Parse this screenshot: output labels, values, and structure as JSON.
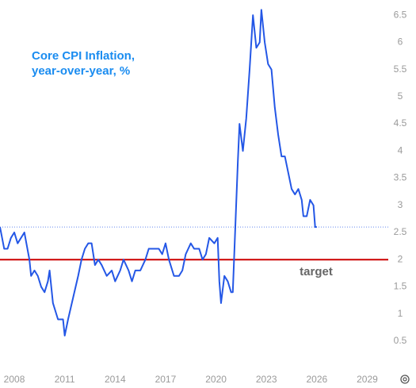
{
  "chart_data": {
    "type": "line",
    "title": "Core CPI Inflation, year-over-year, %",
    "x": [
      2007.15,
      2007.4,
      2007.6,
      2007.8,
      2008.0,
      2008.2,
      2008.4,
      2008.6,
      2008.9,
      2009.0,
      2009.2,
      2009.4,
      2009.6,
      2009.8,
      2010.0,
      2010.1,
      2010.3,
      2010.6,
      2010.9,
      2011.0,
      2011.2,
      2011.5,
      2011.8,
      2012.0,
      2012.2,
      2012.4,
      2012.6,
      2012.8,
      2013.0,
      2013.2,
      2013.5,
      2013.8,
      2014.0,
      2014.3,
      2014.5,
      2014.8,
      2015.0,
      2015.2,
      2015.5,
      2015.8,
      2016.0,
      2016.3,
      2016.6,
      2016.8,
      2017.0,
      2017.2,
      2017.5,
      2017.8,
      2018.0,
      2018.2,
      2018.5,
      2018.7,
      2019.0,
      2019.2,
      2019.4,
      2019.6,
      2019.9,
      2020.1,
      2020.2,
      2020.3,
      2020.5,
      2020.7,
      2020.9,
      2021.0,
      2021.2,
      2021.3,
      2021.4,
      2021.6,
      2021.8,
      2022.0,
      2022.2,
      2022.4,
      2022.6,
      2022.7,
      2022.9,
      2023.1,
      2023.3,
      2023.5,
      2023.7,
      2023.9,
      2024.1,
      2024.3,
      2024.5,
      2024.7,
      2024.9,
      2025.1,
      2025.2,
      2025.4,
      2025.6,
      2025.8,
      2025.9,
      2026.0
    ],
    "series": [
      {
        "name": "Core CPI Inflation",
        "color": "#2457e6",
        "values": [
          2.6,
          2.2,
          2.2,
          2.4,
          2.5,
          2.3,
          2.4,
          2.5,
          2.0,
          1.7,
          1.8,
          1.7,
          1.5,
          1.4,
          1.6,
          1.8,
          1.2,
          0.9,
          0.9,
          0.6,
          0.9,
          1.3,
          1.7,
          2.0,
          2.2,
          2.3,
          2.3,
          1.9,
          2.0,
          1.9,
          1.7,
          1.8,
          1.6,
          1.8,
          2.0,
          1.8,
          1.6,
          1.8,
          1.8,
          2.0,
          2.2,
          2.2,
          2.2,
          2.1,
          2.3,
          2.0,
          1.7,
          1.7,
          1.8,
          2.1,
          2.3,
          2.2,
          2.2,
          2.0,
          2.1,
          2.4,
          2.3,
          2.4,
          1.6,
          1.2,
          1.7,
          1.6,
          1.4,
          1.4,
          3.0,
          3.8,
          4.5,
          4.0,
          4.6,
          5.5,
          6.5,
          5.9,
          6.0,
          6.6,
          6.0,
          5.6,
          5.5,
          4.8,
          4.3,
          3.9,
          3.9,
          3.6,
          3.3,
          3.2,
          3.3,
          3.1,
          2.8,
          2.8,
          3.1,
          3.0,
          2.6,
          2.6
        ]
      }
    ],
    "xlim": [
      2007.15,
      2030.25
    ],
    "ylim": [
      0.06,
      6.78
    ],
    "xticks": [
      2008,
      2011,
      2014,
      2017,
      2020,
      2023,
      2026,
      2029
    ],
    "yticks": [
      0.5,
      1,
      1.5,
      2,
      2.5,
      3,
      3.5,
      4,
      4.5,
      5,
      5.5,
      6,
      6.5
    ],
    "reference_line": {
      "value": 2,
      "label": "target",
      "color": "#cc0000"
    },
    "latest_value_line": true,
    "grid": false
  }
}
